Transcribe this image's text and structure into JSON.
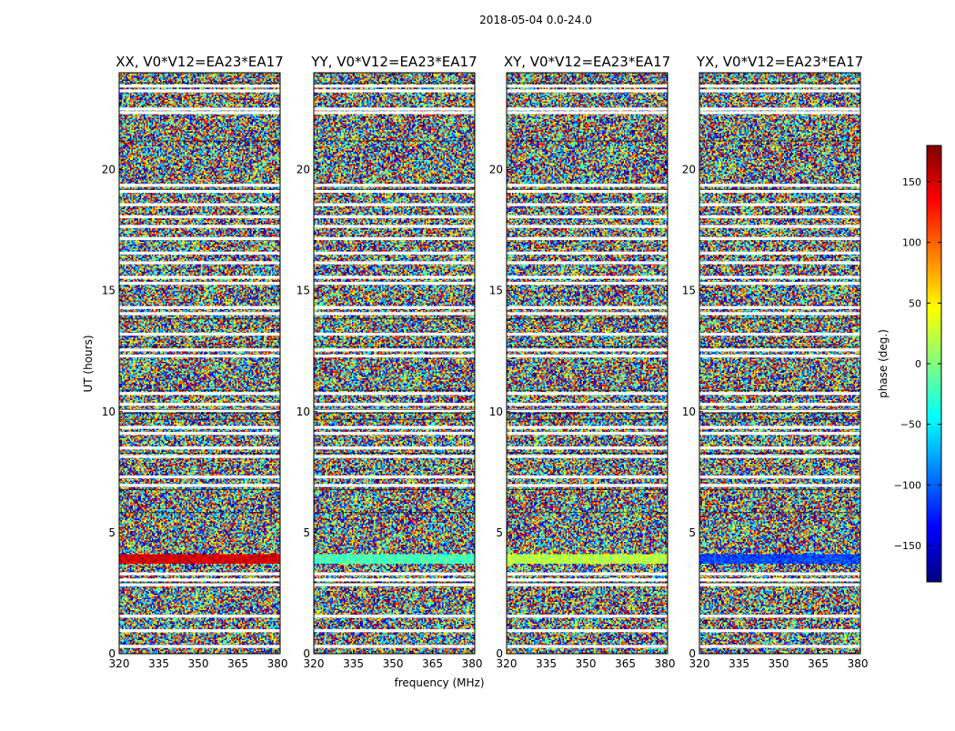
{
  "figure": {
    "suptitle": "2018-05-04 0.0-24.0",
    "xlabel": "frequency (MHz)",
    "ylabel": "UT (hours)"
  },
  "chart_data": {
    "type": "heatmap",
    "title": "2018-05-04 0.0-24.0",
    "xlabel": "frequency (MHz)",
    "ylabel": "UT (hours)",
    "xlim": [
      320,
      381
    ],
    "ylim": [
      0,
      24
    ],
    "xticks": [
      "320",
      "335",
      "350",
      "365",
      "380"
    ],
    "yticks": [
      "0",
      "5",
      "10",
      "15",
      "20"
    ],
    "colorbar": {
      "label": "phase (deg.)",
      "range": [
        -180,
        180
      ],
      "ticks": [
        "150",
        "100",
        "50",
        "0",
        "−50",
        "−100",
        "−150"
      ],
      "colormap": "jet"
    },
    "panels": [
      {
        "title": "XX, V0*V12=EA23*EA17",
        "band_phase": 150
      },
      {
        "title": "YY, V0*V12=EA23*EA17",
        "band_phase": -20
      },
      {
        "title": "XY, V0*V12=EA23*EA17",
        "band_phase": 20
      },
      {
        "title": "YX, V0*V12=EA23*EA17",
        "band_phase": -110
      }
    ],
    "flagged_hours": [
      0.3,
      0.95,
      1.55,
      2.85,
      3.05,
      3.3,
      6.95,
      7.3,
      8.15,
      8.5,
      9.1,
      9.35,
      10.05,
      10.3,
      10.75,
      12.3,
      12.55,
      13.2,
      14.05,
      14.3,
      15.3,
      15.55,
      16.15,
      16.55,
      17.15,
      17.65,
      18.05,
      18.55,
      19.1,
      19.35,
      22.35,
      22.5,
      23.25,
      23.45
    ]
  },
  "colors": {
    "jet": [
      "#00007f",
      "#0000ff",
      "#007fff",
      "#00ffff",
      "#7fff7f",
      "#ffff00",
      "#ff7f00",
      "#ff0000",
      "#7f0000"
    ]
  }
}
